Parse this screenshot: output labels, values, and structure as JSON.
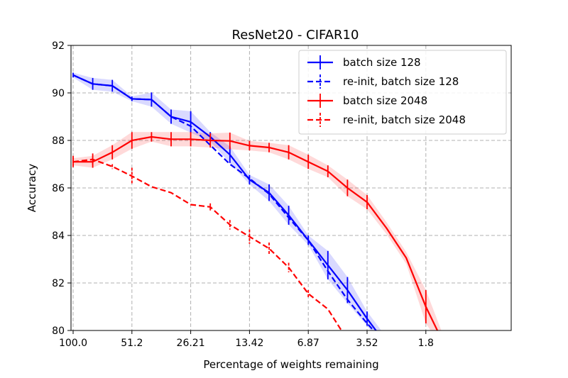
{
  "chart_data": {
    "type": "line",
    "title": "ResNet20 - CIFAR10",
    "xlabel": "Percentage of weights remaining",
    "ylabel": "Accuracy",
    "x_tick_labels": [
      "100.0",
      "51.2",
      "26.21",
      "13.42",
      "6.87",
      "3.52",
      "1.8"
    ],
    "y_ticks": [
      80,
      82,
      84,
      86,
      88,
      90,
      92
    ],
    "ylim": [
      80,
      92
    ],
    "x_scale": "log2 (each step = 80% of previous)",
    "grid": true,
    "legend_position": "top-right",
    "x": [
      100.0,
      80.0,
      64.0,
      51.2,
      40.96,
      32.77,
      26.21,
      20.97,
      16.78,
      13.42,
      10.74,
      8.59,
      6.87,
      5.5,
      4.4,
      3.52,
      2.81,
      2.25,
      1.8,
      1.44
    ],
    "series": [
      {
        "name": "batch size 128",
        "color": "#0000ff",
        "style": "solid",
        "values": [
          90.75,
          90.38,
          90.3,
          89.75,
          89.72,
          89.0,
          88.78,
          88.15,
          87.4,
          86.35,
          85.8,
          84.85,
          83.8,
          82.75,
          81.7,
          80.5,
          79.4,
          null,
          null,
          null
        ],
        "errors": [
          0.1,
          0.25,
          0.25,
          0.1,
          0.3,
          0.3,
          0.45,
          0.2,
          0.35,
          0.2,
          0.35,
          0.4,
          0.2,
          0.6,
          0.55,
          0.3,
          0.3,
          null,
          null,
          null
        ]
      },
      {
        "name": "re-init, batch size 128",
        "color": "#0000ff",
        "style": "dashed",
        "values": [
          90.75,
          90.38,
          90.3,
          89.75,
          89.72,
          89.0,
          88.6,
          87.8,
          87.0,
          86.4,
          85.75,
          84.75,
          83.8,
          82.5,
          81.3,
          80.3,
          79.4,
          null,
          null,
          null
        ],
        "errors": [
          null,
          null,
          null,
          null,
          null,
          null,
          null,
          null,
          null,
          null,
          null,
          null,
          null,
          null,
          null,
          null,
          null,
          null,
          null,
          null
        ]
      },
      {
        "name": "batch size 2048",
        "color": "#ff0000",
        "style": "solid",
        "values": [
          87.1,
          87.1,
          87.5,
          88.0,
          88.15,
          88.05,
          88.05,
          88.0,
          87.98,
          87.78,
          87.7,
          87.5,
          87.1,
          86.7,
          86.0,
          85.4,
          84.3,
          83.05,
          81.0,
          79.3
        ],
        "errors": [
          0.15,
          0.25,
          0.3,
          0.35,
          0.2,
          0.3,
          0.3,
          0.3,
          0.35,
          0.2,
          0.2,
          0.3,
          0.3,
          0.25,
          0.35,
          0.3,
          null,
          null,
          0.7,
          null
        ]
      },
      {
        "name": "re-init, batch size 2048",
        "color": "#ff0000",
        "style": "dashed",
        "values": [
          87.1,
          87.2,
          86.9,
          86.5,
          86.05,
          85.8,
          85.3,
          85.2,
          84.45,
          83.95,
          83.45,
          82.65,
          81.55,
          80.9,
          79.6,
          null,
          null,
          null,
          null,
          null
        ],
        "errors": [
          0.25,
          0.25,
          0.1,
          0.35,
          null,
          null,
          null,
          0.15,
          0.2,
          0.3,
          0.25,
          0.2,
          0.15,
          null,
          null,
          null,
          null,
          null,
          null,
          null
        ]
      }
    ]
  }
}
